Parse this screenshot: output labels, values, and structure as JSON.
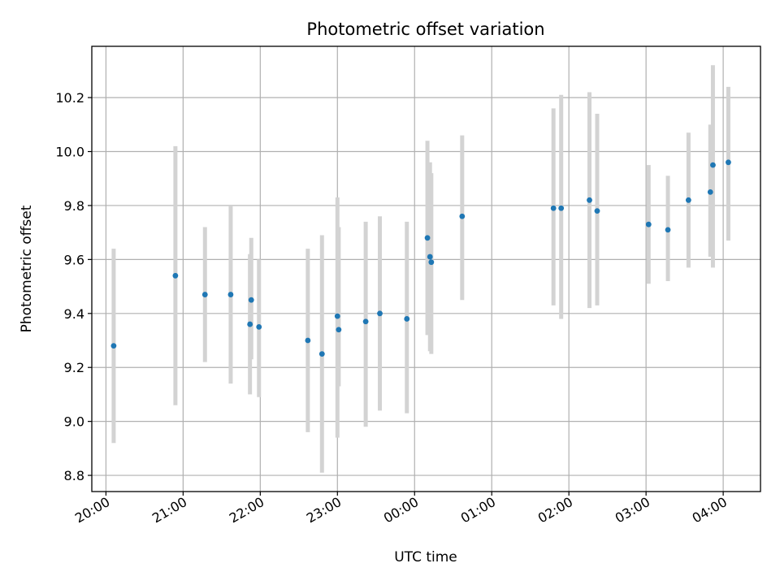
{
  "chart_data": {
    "type": "scatter",
    "title": "Photometric offset variation",
    "xlabel": "UTC time",
    "ylabel": "Photometric offset",
    "xlim": [
      "19:49",
      "04:29"
    ],
    "ylim": [
      8.74,
      10.39
    ],
    "x_ticks": [
      "20:00",
      "21:00",
      "22:00",
      "23:00",
      "00:00",
      "01:00",
      "02:00",
      "03:00",
      "04:00"
    ],
    "y_ticks": [
      "8.8",
      "9.0",
      "9.2",
      "9.4",
      "9.6",
      "9.8",
      "10.0",
      "10.2"
    ],
    "grid": true,
    "colors": {
      "points": "#1f77b4",
      "error_bars": "#d3d3d3",
      "grid": "#b0b0b0"
    },
    "series": [
      {
        "x": [
          "20:06",
          "20:54",
          "21:17",
          "21:37",
          "21:52",
          "21:53",
          "21:59",
          "22:37",
          "22:48",
          "23:00",
          "23:01",
          "23:22",
          "23:33",
          "23:54",
          "00:10",
          "00:12",
          "00:13",
          "00:37",
          "01:48",
          "01:54",
          "02:16",
          "02:22",
          "03:02",
          "03:17",
          "03:33",
          "03:50",
          "03:52",
          "04:04"
        ],
        "y": [
          9.28,
          9.54,
          9.47,
          9.47,
          9.36,
          9.45,
          9.35,
          9.3,
          9.25,
          9.39,
          9.34,
          9.37,
          9.4,
          9.38,
          9.68,
          9.61,
          9.59,
          9.76,
          9.79,
          9.79,
          9.82,
          9.78,
          9.73,
          9.71,
          9.82,
          9.85,
          9.95,
          9.96
        ],
        "y_low": [
          8.92,
          9.06,
          9.22,
          9.14,
          9.1,
          9.23,
          9.09,
          8.96,
          8.81,
          8.94,
          9.13,
          8.98,
          9.04,
          9.03,
          9.32,
          9.26,
          9.25,
          9.45,
          9.43,
          9.38,
          9.42,
          9.43,
          9.51,
          9.52,
          9.57,
          9.61,
          9.57,
          9.67
        ],
        "y_high": [
          9.64,
          10.02,
          9.72,
          9.8,
          9.62,
          9.68,
          9.6,
          9.64,
          9.69,
          9.83,
          9.72,
          9.74,
          9.76,
          9.74,
          10.04,
          9.96,
          9.92,
          10.06,
          10.16,
          10.21,
          10.22,
          10.14,
          9.95,
          9.91,
          10.07,
          10.1,
          10.32,
          10.24
        ]
      }
    ]
  }
}
